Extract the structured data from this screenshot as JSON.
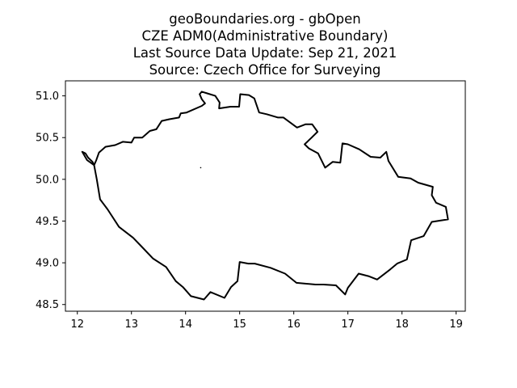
{
  "figure": {
    "title_lines": [
      "geoBoundaries.org - gbOpen",
      "CZE ADM0(Administrative Boundary)",
      "Last Source Data Update: Sep 21, 2021",
      "Source: Czech Office for Surveying"
    ]
  },
  "chart_data": {
    "type": "map",
    "xlim": [
      11.78,
      19.17
    ],
    "ylim": [
      48.42,
      51.18
    ],
    "x_ticks": [
      12,
      13,
      14,
      15,
      16,
      17,
      18,
      19
    ],
    "x_tick_labels": [
      "12",
      "13",
      "14",
      "15",
      "16",
      "17",
      "18",
      "19"
    ],
    "y_ticks": [
      48.5,
      49.0,
      49.5,
      50.0,
      50.5,
      51.0
    ],
    "y_tick_labels": [
      "48.5",
      "49.0",
      "49.5",
      "50.0",
      "50.5",
      "51.0"
    ],
    "grid": false,
    "boundary_color": "#000000",
    "boundary": [
      [
        12.09,
        50.33
      ],
      [
        12.15,
        50.31
      ],
      [
        12.2,
        50.26
      ],
      [
        12.28,
        50.21
      ],
      [
        12.31,
        50.17
      ],
      [
        12.35,
        50.23
      ],
      [
        12.4,
        50.32
      ],
      [
        12.52,
        50.39
      ],
      [
        12.7,
        50.41
      ],
      [
        12.84,
        50.45
      ],
      [
        13.0,
        50.44
      ],
      [
        13.05,
        50.5
      ],
      [
        13.2,
        50.5
      ],
      [
        13.34,
        50.58
      ],
      [
        13.46,
        50.6
      ],
      [
        13.56,
        50.7
      ],
      [
        13.7,
        50.72
      ],
      [
        13.88,
        50.74
      ],
      [
        13.91,
        50.79
      ],
      [
        14.02,
        50.8
      ],
      [
        14.3,
        50.88
      ],
      [
        14.36,
        50.91
      ],
      [
        14.3,
        50.96
      ],
      [
        14.26,
        51.02
      ],
      [
        14.3,
        51.05
      ],
      [
        14.4,
        51.03
      ],
      [
        14.55,
        51.0
      ],
      [
        14.63,
        50.92
      ],
      [
        14.62,
        50.85
      ],
      [
        14.83,
        50.87
      ],
      [
        14.99,
        50.87
      ],
      [
        15.01,
        51.02
      ],
      [
        15.17,
        51.01
      ],
      [
        15.27,
        50.97
      ],
      [
        15.36,
        50.8
      ],
      [
        15.5,
        50.78
      ],
      [
        15.71,
        50.74
      ],
      [
        15.81,
        50.74
      ],
      [
        16.06,
        50.62
      ],
      [
        16.22,
        50.66
      ],
      [
        16.34,
        50.66
      ],
      [
        16.44,
        50.57
      ],
      [
        16.33,
        50.5
      ],
      [
        16.2,
        50.42
      ],
      [
        16.28,
        50.37
      ],
      [
        16.45,
        50.31
      ],
      [
        16.58,
        50.14
      ],
      [
        16.72,
        50.21
      ],
      [
        16.86,
        50.2
      ],
      [
        16.9,
        50.43
      ],
      [
        17.0,
        50.42
      ],
      [
        17.21,
        50.36
      ],
      [
        17.42,
        50.27
      ],
      [
        17.6,
        50.26
      ],
      [
        17.71,
        50.33
      ],
      [
        17.75,
        50.22
      ],
      [
        17.93,
        50.03
      ],
      [
        18.16,
        50.01
      ],
      [
        18.3,
        49.96
      ],
      [
        18.57,
        49.91
      ],
      [
        18.55,
        49.81
      ],
      [
        18.63,
        49.72
      ],
      [
        18.81,
        49.67
      ],
      [
        18.85,
        49.52
      ],
      [
        18.55,
        49.49
      ],
      [
        18.4,
        49.32
      ],
      [
        18.17,
        49.27
      ],
      [
        18.09,
        49.04
      ],
      [
        17.91,
        48.99
      ],
      [
        17.78,
        48.92
      ],
      [
        17.54,
        48.8
      ],
      [
        17.38,
        48.84
      ],
      [
        17.2,
        48.87
      ],
      [
        17.0,
        48.7
      ],
      [
        16.95,
        48.62
      ],
      [
        16.78,
        48.73
      ],
      [
        16.55,
        48.74
      ],
      [
        16.4,
        48.74
      ],
      [
        16.05,
        48.76
      ],
      [
        15.84,
        48.87
      ],
      [
        15.57,
        48.94
      ],
      [
        15.28,
        48.99
      ],
      [
        15.16,
        48.99
      ],
      [
        15.0,
        49.01
      ],
      [
        14.96,
        48.78
      ],
      [
        14.84,
        48.71
      ],
      [
        14.72,
        48.58
      ],
      [
        14.46,
        48.65
      ],
      [
        14.34,
        48.56
      ],
      [
        14.1,
        48.6
      ],
      [
        13.95,
        48.71
      ],
      [
        13.82,
        48.78
      ],
      [
        13.64,
        48.95
      ],
      [
        13.4,
        49.05
      ],
      [
        13.18,
        49.2
      ],
      [
        13.03,
        49.3
      ],
      [
        12.77,
        49.43
      ],
      [
        12.56,
        49.64
      ],
      [
        12.42,
        49.76
      ],
      [
        12.36,
        50.0
      ],
      [
        12.31,
        50.17
      ],
      [
        12.18,
        50.23
      ],
      [
        12.09,
        50.33
      ]
    ],
    "markers": [
      [
        14.28,
        50.14
      ]
    ]
  }
}
